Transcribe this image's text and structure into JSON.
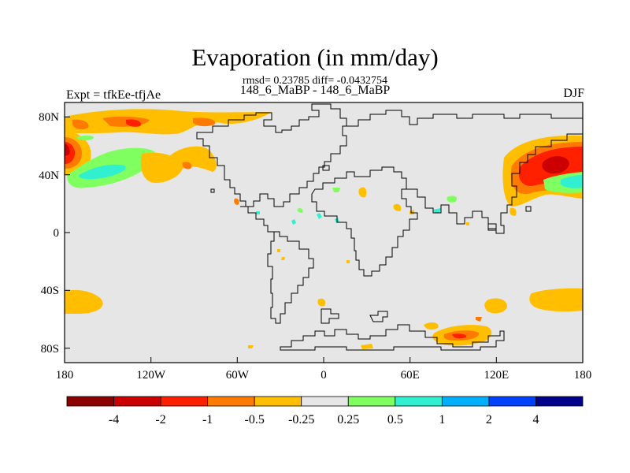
{
  "title": "Evaporation (in mm/day)",
  "stats": "rmsd= 0.23785 diff= -0.0432754",
  "experiment_label": "Expt = tfkEe-tfjAe",
  "case_label": "148_6_MaBP - 148_6_MaBP",
  "season_label": "DJF",
  "map": {
    "projection": "cylindrical-equidistant",
    "lon_range": [
      -180,
      180
    ],
    "lat_range": [
      -90,
      90
    ],
    "x_ticks": [
      "180",
      "120W",
      "60W",
      "0",
      "60E",
      "120E",
      "180"
    ],
    "y_ticks": [
      "80N",
      "40N",
      "0",
      "40S",
      "80S"
    ],
    "background_color": "#e6e6e6"
  },
  "colorbar": {
    "levels": [
      "-4",
      "-2",
      "-1",
      "-0.5",
      "-0.25",
      "0.25",
      "0.5",
      "1",
      "2",
      "4"
    ],
    "colors": [
      "#8b0000",
      "#cc0000",
      "#ff2000",
      "#ff7a00",
      "#ffbf00",
      "#e6e6e6",
      "#80ff60",
      "#30f0d0",
      "#00b0ff",
      "#0040ff",
      "#00008b"
    ]
  },
  "anomaly_regions": [
    {
      "name": "north-pacific-east",
      "level": "-1",
      "color": "#ff2000"
    },
    {
      "name": "north-pacific-west",
      "level": "-2",
      "color": "#cc0000"
    },
    {
      "name": "subpolar-atlantic",
      "level": "-0.5",
      "color": "#ffbf00"
    },
    {
      "name": "south-pacific",
      "level": "-0.5",
      "color": "#ffbf00"
    },
    {
      "name": "south-indian-ocean",
      "level": "-1",
      "color": "#ff2000"
    },
    {
      "name": "subtropical-north-pacific",
      "level": "0.5",
      "color": "#30f0d0"
    }
  ]
}
